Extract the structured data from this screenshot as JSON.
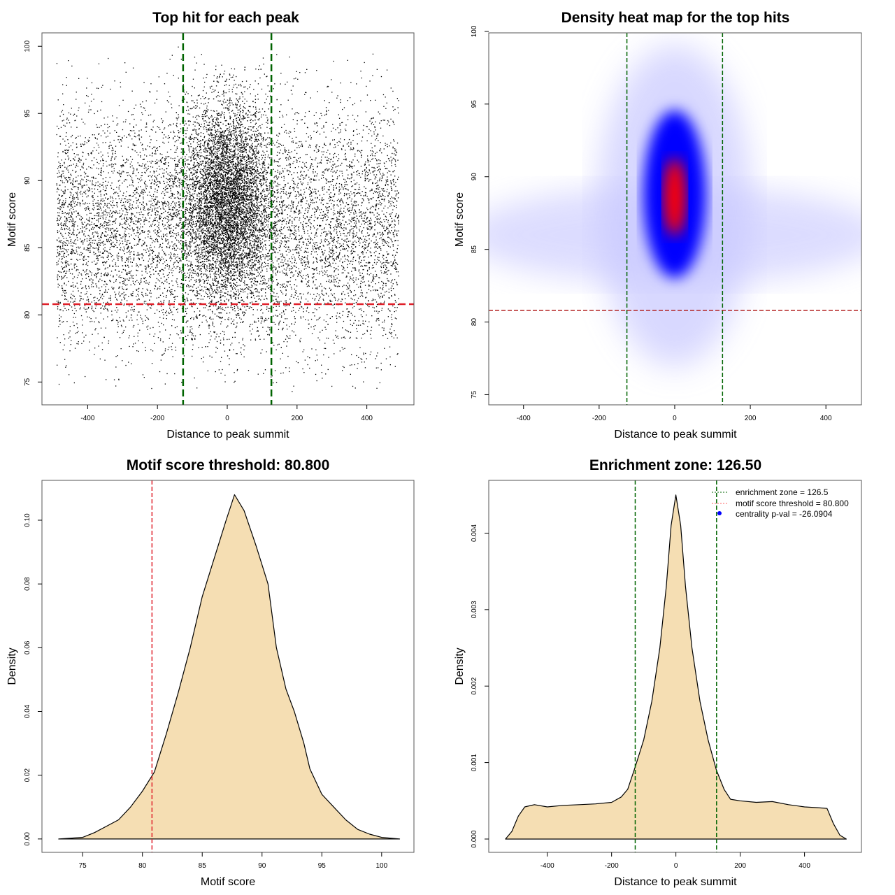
{
  "chart_data": [
    {
      "type": "scatter",
      "title": "Top hit for each peak",
      "xlabel": "Distance to peak summit",
      "ylabel": "Motif score",
      "xlim": [
        -531,
        535
      ],
      "ylim": [
        73.3,
        101
      ],
      "xticks": [
        -400,
        -200,
        0,
        200,
        400
      ],
      "yticks": [
        75,
        80,
        85,
        90,
        95,
        100
      ],
      "distribution": {
        "background_x_range": [
          -490,
          490
        ],
        "background_y_mean": 86.5,
        "background_y_sd": 4.5,
        "central_x_sd": 60,
        "central_y_mean": 88.5,
        "central_y_sd": 3.6
      },
      "vlines": [
        -126.5,
        126.5
      ],
      "hline": 80.8,
      "vline_color": "#006400",
      "hline_color": "#e0202a"
    },
    {
      "type": "heatmap",
      "title": "Density heat map for the top hits",
      "xlabel": "Distance to peak summit",
      "ylabel": "Motif score",
      "xlim": [
        -492,
        494
      ],
      "ylim": [
        74.3,
        99.9
      ],
      "xticks": [
        -400,
        -200,
        0,
        200,
        400
      ],
      "yticks": [
        75,
        80,
        85,
        90,
        95,
        100
      ],
      "peak": {
        "x": 0,
        "y": 88.5
      },
      "vlines": [
        -126.5,
        126.5
      ],
      "hline": 80.8,
      "vline_color": "#006400",
      "hline_color": "#b22222"
    },
    {
      "type": "area",
      "title": "Motif score threshold: 80.800",
      "xlabel": "Motif score",
      "ylabel": "Density",
      "xlim": [
        71.6,
        102.7
      ],
      "ylim": [
        -0.0042,
        0.1125
      ],
      "xticks": [
        75,
        80,
        85,
        90,
        95,
        100
      ],
      "yticks": [
        "0.00",
        "0.02",
        "0.04",
        "0.06",
        "0.08",
        "0.10"
      ],
      "x": [
        73,
        75,
        76,
        77,
        78,
        79,
        80,
        81,
        82,
        83,
        84,
        85,
        86,
        87,
        87.7,
        88.5,
        89.5,
        90.5,
        91.2,
        92,
        92.7,
        93.5,
        94,
        95,
        96,
        97,
        98,
        99,
        100,
        101.5
      ],
      "y": [
        0,
        0.0005,
        0.002,
        0.004,
        0.006,
        0.01,
        0.015,
        0.021,
        0.033,
        0.046,
        0.06,
        0.076,
        0.088,
        0.1,
        0.108,
        0.103,
        0.092,
        0.08,
        0.06,
        0.047,
        0.04,
        0.03,
        0.022,
        0.014,
        0.01,
        0.006,
        0.003,
        0.0015,
        0.0005,
        0
      ],
      "fill": "#f5deb3",
      "vline": 80.8,
      "vline_color": "#e0202a"
    },
    {
      "type": "area",
      "title": "Enrichment zone: 126.50",
      "xlabel": "Distance to peak summit",
      "ylabel": "Density",
      "xlim": [
        -582,
        577
      ],
      "ylim": [
        -0.000174,
        0.00469
      ],
      "xticks": [
        -400,
        -200,
        0,
        200,
        400
      ],
      "yticks": [
        "0.000",
        "0.001",
        "0.002",
        "0.003",
        "0.004"
      ],
      "x": [
        -530,
        -510,
        -490,
        -470,
        -440,
        -400,
        -350,
        -300,
        -250,
        -200,
        -170,
        -150,
        -126,
        -100,
        -75,
        -50,
        -30,
        -15,
        0,
        15,
        30,
        50,
        75,
        100,
        126,
        150,
        170,
        200,
        250,
        300,
        350,
        400,
        440,
        470,
        490,
        510,
        530
      ],
      "y": [
        0,
        0.0001,
        0.0003,
        0.00042,
        0.00045,
        0.00042,
        0.00044,
        0.00045,
        0.00046,
        0.00048,
        0.00055,
        0.00065,
        0.00095,
        0.0013,
        0.0018,
        0.0025,
        0.0033,
        0.0041,
        0.0045,
        0.0041,
        0.0033,
        0.0025,
        0.0018,
        0.0013,
        0.0009,
        0.00065,
        0.00052,
        0.0005,
        0.00048,
        0.00049,
        0.00045,
        0.00042,
        0.00041,
        0.0004,
        0.0002,
        5e-05,
        0
      ],
      "fill": "#f5deb3",
      "vlines": [
        -126.5,
        126.5
      ],
      "vline_color": "#006400",
      "legend": {
        "position": "top-right",
        "entries": [
          "enrichment zone = 126.5",
          "motif score threshold = 80.800",
          "centrality p-val = -26.0904"
        ],
        "colors": [
          "#006400",
          "#ff6060",
          "#0000ff"
        ]
      }
    }
  ]
}
